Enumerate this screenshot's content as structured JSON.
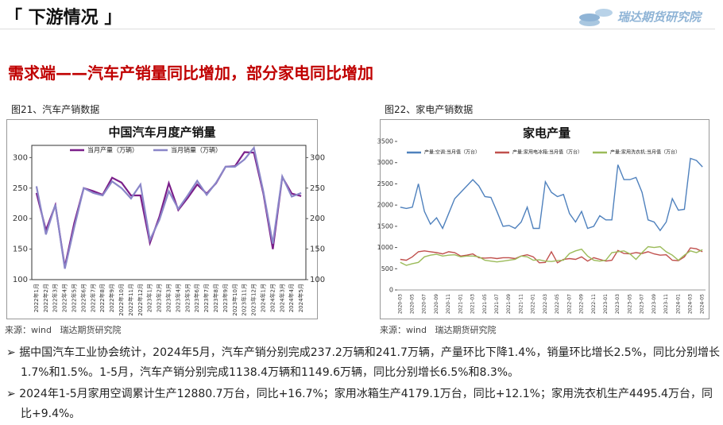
{
  "header": {
    "title": "下游情况",
    "logo": "瑞达期货研究院"
  },
  "subtitle": "需求端——汽车产销量同比增加，部分家电同比增加",
  "figures": [
    {
      "caption": "图21、汽车产销数据",
      "source": "来源：wind   瑞达期货研究院"
    },
    {
      "caption": "图22、家电产销数据",
      "source": "来源：wind   瑞达期货研究院"
    }
  ],
  "bullets": [
    "据中国汽车工业协会统计，2024年5月，汽车产销分别完成237.2万辆和241.7万辆，产量环比下降1.4%，销量环比增长2.5%，同比分别增长1.7%和1.5%。1-5月，汽车产销分别完成1138.4万辆和1149.6万辆，同比分别增长6.5%和8.3%。",
    "2024年1-5月家用空调累计生产12880.7万台，同比+16.7%；家用冰箱生产4179.1万台，同比+12.1%；家用洗衣机生产4495.4万台，同比+9.4%。"
  ],
  "chart_data": [
    {
      "type": "line",
      "title": "中国汽车月度产销量",
      "categories": [
        "2022年1月",
        "2022年2月",
        "2022年3月",
        "2022年4月",
        "2022年5月",
        "2022年6月",
        "2022年7月",
        "2022年8月",
        "2022年9月",
        "2022年10月",
        "2022年11月",
        "2022年12月",
        "2023年1月",
        "2023年2月",
        "2023年3月",
        "2023年4月",
        "2023年5月",
        "2023年6月",
        "2023年7月",
        "2023年8月",
        "2023年9月",
        "2023年10月",
        "2023年11月",
        "2023年12月",
        "2024年1月",
        "2024年2月",
        "2024年3月",
        "2024年4月",
        "2024年5月"
      ],
      "series": [
        {
          "name": "当月产量（万辆）",
          "color": "#7b1f8a",
          "values": [
            242,
            181,
            222,
            121,
            193,
            250,
            245,
            239,
            267,
            259,
            238,
            238,
            160,
            203,
            258,
            214,
            234,
            256,
            241,
            258,
            285,
            286,
            309,
            308,
            241,
            150,
            268,
            241,
            237
          ]
        },
        {
          "name": "当月销量（万辆）",
          "color": "#8a86c8",
          "values": [
            253,
            174,
            223,
            118,
            186,
            250,
            242,
            238,
            261,
            250,
            233,
            256,
            165,
            198,
            245,
            216,
            238,
            262,
            239,
            259,
            285,
            285,
            297,
            316,
            244,
            159,
            269,
            236,
            242
          ]
        }
      ],
      "ylim": [
        100,
        320
      ],
      "yticks": [
        100,
        150,
        200,
        250,
        300
      ],
      "y2lim": [
        100,
        320
      ],
      "y2ticks": [
        100,
        150,
        200,
        250,
        300
      ]
    },
    {
      "type": "line",
      "title": "家电产量",
      "categories": [
        "2020-03",
        null,
        "2020-05",
        null,
        "2020-07",
        null,
        "2020-09",
        null,
        "2020-11",
        null,
        "2021-01",
        null,
        "2021-03",
        null,
        "2021-05",
        null,
        "2021-07",
        null,
        "2021-09",
        null,
        "2021-11",
        null,
        "2022-01",
        null,
        "2022-03",
        null,
        "2022-05",
        null,
        "2022-07",
        null,
        "2022-09",
        null,
        "2022-11",
        null,
        "2023-01",
        null,
        "2023-03",
        null,
        "2023-05",
        null,
        "2023-07",
        null,
        "2023-09",
        null,
        "2023-11",
        null,
        "2024-01",
        null,
        "2024-03",
        null,
        "2024-05"
      ],
      "series": [
        {
          "name": "产量:空调:当月值（万台）",
          "color": "#4f81bd",
          "values": [
            1950,
            1920,
            1950,
            2500,
            1850,
            1550,
            1700,
            1450,
            1800,
            2150,
            2300,
            2450,
            2600,
            2450,
            2200,
            2180,
            1850,
            1500,
            1520,
            1450,
            1600,
            1950,
            1450,
            1450,
            2550,
            2300,
            2200,
            2250,
            1800,
            1600,
            1850,
            1450,
            1500,
            1750,
            1650,
            1650,
            2950,
            2600,
            2600,
            2650,
            2300,
            1650,
            1600,
            1400,
            1600,
            2150,
            1880,
            1900,
            3100,
            3050,
            2900
          ]
        },
        {
          "name": "产量:家用电冰箱:当月值（万台）",
          "color": "#c0504d",
          "values": [
            720,
            700,
            780,
            900,
            920,
            900,
            880,
            850,
            900,
            880,
            800,
            820,
            850,
            760,
            750,
            760,
            740,
            760,
            760,
            740,
            800,
            830,
            780,
            640,
            650,
            900,
            640,
            720,
            740,
            720,
            780,
            680,
            760,
            720,
            680,
            700,
            930,
            860,
            850,
            880,
            860,
            900,
            850,
            820,
            830,
            700,
            690,
            780,
            990,
            970,
            900
          ]
        },
        {
          "name": "产量:家用洗衣机:当月值（万台）",
          "color": "#9bbb59",
          "values": [
            650,
            580,
            620,
            650,
            780,
            820,
            840,
            800,
            820,
            830,
            780,
            800,
            800,
            780,
            700,
            680,
            660,
            680,
            700,
            720,
            800,
            780,
            700,
            710,
            680,
            670,
            690,
            700,
            860,
            920,
            960,
            800,
            700,
            680,
            700,
            880,
            900,
            920,
            850,
            720,
            880,
            1020,
            1000,
            1020,
            900,
            820,
            700,
            820,
            920,
            880,
            950
          ]
        }
      ],
      "ylim": [
        0,
        3500
      ],
      "yticks": [
        0,
        500,
        1000,
        1500,
        2000,
        2500,
        3000,
        3500
      ]
    }
  ]
}
